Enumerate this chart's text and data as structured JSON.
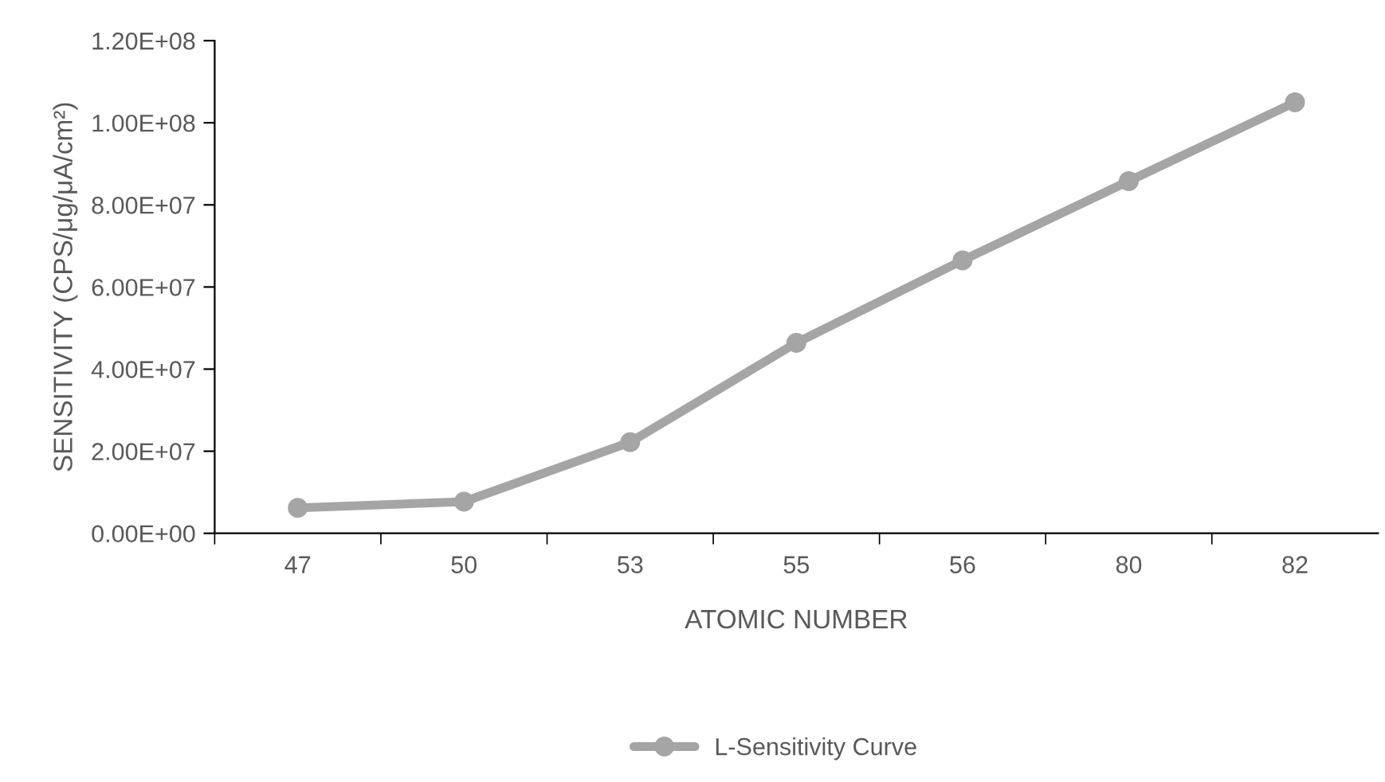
{
  "chart_data": {
    "type": "line",
    "xlabel": "ATOMIC NUMBER",
    "ylabel": "SENSITIVITY (CPS/μg/μA/cm²)",
    "categories": [
      "47",
      "50",
      "53",
      "55",
      "56",
      "80",
      "82"
    ],
    "series": [
      {
        "name": "L-Sensitivity Curve",
        "color": "#a5a5a5",
        "values": [
          6200000,
          7700000,
          22200000,
          46400000,
          66500000,
          85800000,
          105000000
        ]
      }
    ],
    "ylim": [
      0,
      120000000
    ],
    "yticks": [
      {
        "value": 0,
        "label": "0.00E+00"
      },
      {
        "value": 20000000,
        "label": "2.00E+07"
      },
      {
        "value": 40000000,
        "label": "4.00E+07"
      },
      {
        "value": 60000000,
        "label": "6.00E+07"
      },
      {
        "value": 80000000,
        "label": "8.00E+07"
      },
      {
        "value": 100000000,
        "label": "1.00E+08"
      },
      {
        "value": 120000000,
        "label": "1.20E+08"
      }
    ],
    "grid": false,
    "legend": "bottom",
    "marker": "circle",
    "line_style": "solid"
  }
}
